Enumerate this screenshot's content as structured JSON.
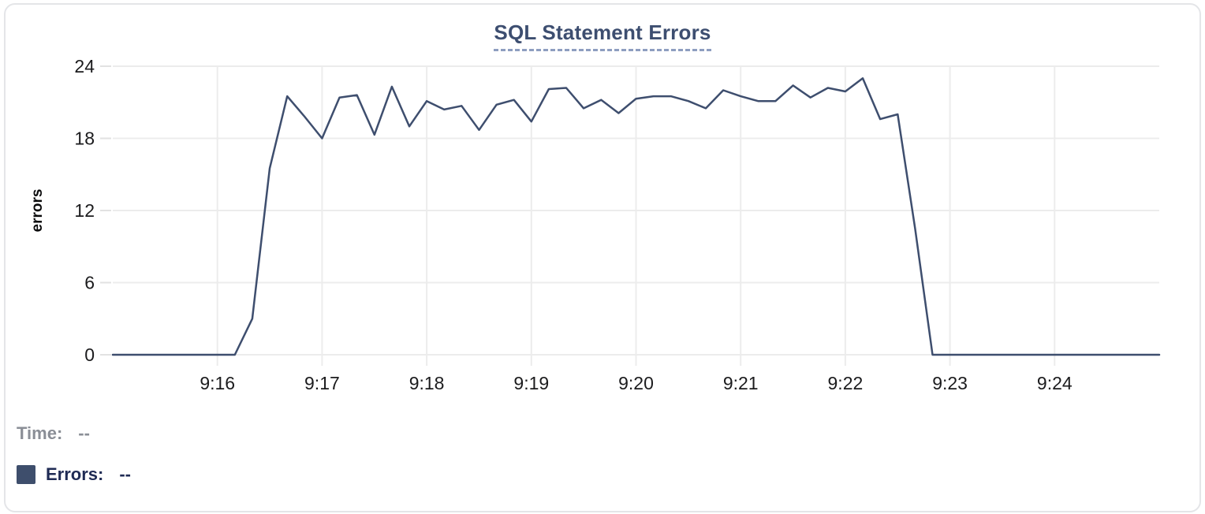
{
  "colors": {
    "line": "#3e4e6e",
    "title": "#3d4e70",
    "grid": "#ececec",
    "tick": "#e2e2e2",
    "tick_text": "#1b1b1d",
    "legend_time": "#8a8e96",
    "legend_errors": "#1f2b54",
    "swatch": "#3e4e6c",
    "card_border": "#e4e5e8"
  },
  "legend": {
    "time_label": "Time:",
    "time_value": "--",
    "errors_label": "Errors:",
    "errors_value": "--",
    "swatch_color": "#3e4e6c"
  },
  "chart_data": {
    "type": "line",
    "title": "SQL Statement Errors",
    "xlabel": "",
    "ylabel": "errors",
    "grid": true,
    "legend_position": "bottom",
    "ylim": [
      0,
      24
    ],
    "y_ticks": [
      0,
      6,
      12,
      18,
      24
    ],
    "xlim": [
      "9:15:00",
      "9:25:00"
    ],
    "x_ticks": [
      "9:16",
      "9:17",
      "9:18",
      "9:19",
      "9:20",
      "9:21",
      "9:22",
      "9:23",
      "9:24"
    ],
    "series": [
      {
        "name": "Errors",
        "color": "#3e4e6e",
        "points": [
          [
            "9:15:00",
            0
          ],
          [
            "9:15:10",
            0
          ],
          [
            "9:15:20",
            0
          ],
          [
            "9:15:30",
            0
          ],
          [
            "9:15:40",
            0
          ],
          [
            "9:15:50",
            0
          ],
          [
            "9:16:00",
            0
          ],
          [
            "9:16:10",
            0
          ],
          [
            "9:16:20",
            3
          ],
          [
            "9:16:30",
            15.5
          ],
          [
            "9:16:40",
            21.5
          ],
          [
            "9:16:50",
            19.8
          ],
          [
            "9:17:00",
            18
          ],
          [
            "9:17:10",
            21.4
          ],
          [
            "9:17:20",
            21.6
          ],
          [
            "9:17:30",
            18.3
          ],
          [
            "9:17:40",
            22.3
          ],
          [
            "9:17:50",
            19
          ],
          [
            "9:18:00",
            21.1
          ],
          [
            "9:18:10",
            20.4
          ],
          [
            "9:18:20",
            20.7
          ],
          [
            "9:18:30",
            18.7
          ],
          [
            "9:18:40",
            20.8
          ],
          [
            "9:18:50",
            21.2
          ],
          [
            "9:19:00",
            19.4
          ],
          [
            "9:19:10",
            22.1
          ],
          [
            "9:19:20",
            22.2
          ],
          [
            "9:19:30",
            20.5
          ],
          [
            "9:19:40",
            21.2
          ],
          [
            "9:19:50",
            20.1
          ],
          [
            "9:20:00",
            21.3
          ],
          [
            "9:20:10",
            21.5
          ],
          [
            "9:20:20",
            21.5
          ],
          [
            "9:20:30",
            21.1
          ],
          [
            "9:20:40",
            20.5
          ],
          [
            "9:20:50",
            22
          ],
          [
            "9:21:00",
            21.5
          ],
          [
            "9:21:10",
            21.1
          ],
          [
            "9:21:20",
            21.1
          ],
          [
            "9:21:30",
            22.4
          ],
          [
            "9:21:40",
            21.4
          ],
          [
            "9:21:50",
            22.2
          ],
          [
            "9:22:00",
            21.9
          ],
          [
            "9:22:10",
            23
          ],
          [
            "9:22:20",
            19.6
          ],
          [
            "9:22:30",
            20
          ],
          [
            "9:22:40",
            10.5
          ],
          [
            "9:22:50",
            0
          ],
          [
            "9:23:00",
            0
          ],
          [
            "9:23:10",
            0
          ],
          [
            "9:23:20",
            0
          ],
          [
            "9:23:30",
            0
          ],
          [
            "9:23:40",
            0
          ],
          [
            "9:23:50",
            0
          ],
          [
            "9:24:00",
            0
          ],
          [
            "9:24:10",
            0
          ],
          [
            "9:24:20",
            0
          ],
          [
            "9:24:30",
            0
          ],
          [
            "9:24:40",
            0
          ],
          [
            "9:24:50",
            0
          ],
          [
            "9:25:00",
            0
          ]
        ]
      }
    ]
  }
}
